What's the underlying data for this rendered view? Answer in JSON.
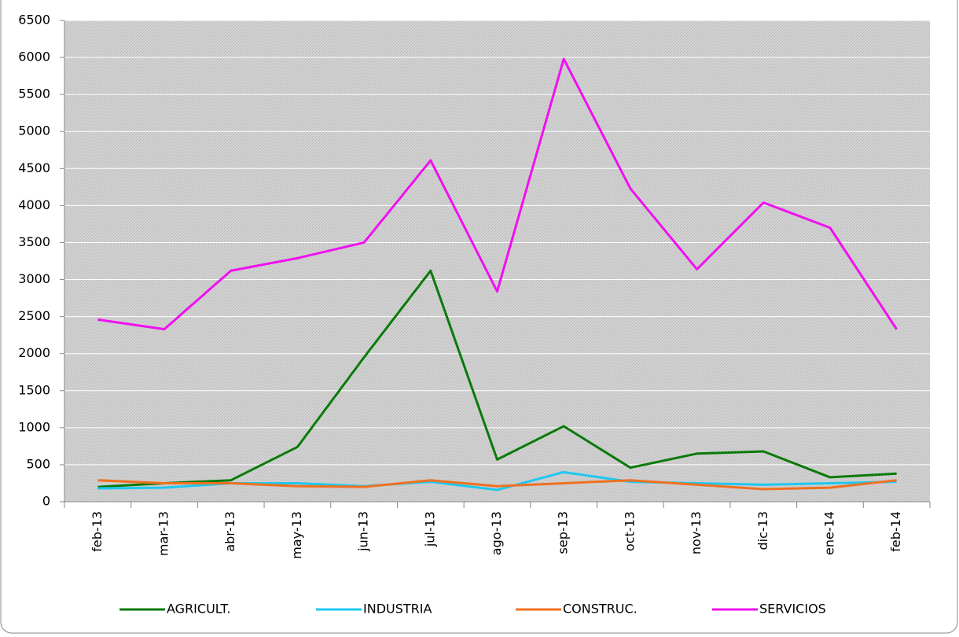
{
  "chart_data": {
    "type": "line",
    "categories": [
      "feb-13",
      "mar-13",
      "abr-13",
      "may-13",
      "jun-13",
      "jul-13",
      "ago-13",
      "sep-13",
      "oct-13",
      "nov-13",
      "dic-13",
      "ene-14",
      "feb-14"
    ],
    "series": [
      {
        "name": "AGRICULT.",
        "color": "#0a7a0a",
        "values": [
          200,
          250,
          290,
          740,
          1950,
          3120,
          570,
          1020,
          460,
          650,
          680,
          330,
          380
        ]
      },
      {
        "name": "INDUSTRIA",
        "color": "#1ec8f0",
        "values": [
          180,
          190,
          250,
          250,
          210,
          270,
          160,
          400,
          270,
          250,
          230,
          250,
          270
        ]
      },
      {
        "name": "CONSTRUC.",
        "color": "#f07020",
        "values": [
          290,
          250,
          250,
          210,
          200,
          290,
          210,
          250,
          290,
          230,
          170,
          190,
          290
        ]
      },
      {
        "name": "SERVICIOS",
        "color": "#f010f0",
        "values": [
          2460,
          2330,
          3120,
          3290,
          3500,
          4610,
          2840,
          5980,
          4230,
          3140,
          4040,
          3700,
          2330
        ]
      }
    ],
    "ylim": [
      0,
      6500
    ],
    "yticks": [
      0,
      500,
      1000,
      1500,
      2000,
      2500,
      3000,
      3500,
      4000,
      4500,
      5000,
      5500,
      6000,
      6500
    ],
    "grid": true
  }
}
